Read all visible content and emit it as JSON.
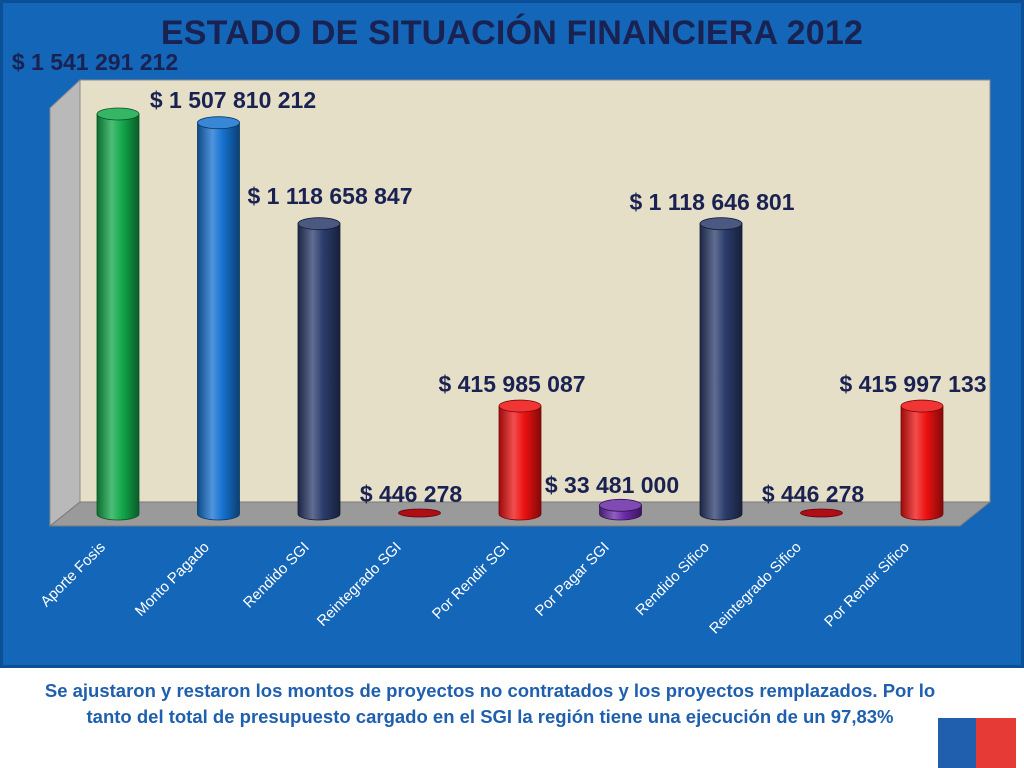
{
  "chart_data": {
    "type": "bar",
    "style": "3d-cylinder",
    "title": "ESTADO DE SITUACIÓN FINANCIERA 2012",
    "xlabel": "",
    "ylabel": "",
    "ylim": [
      0,
      1600000000
    ],
    "grid": false,
    "legend": "none",
    "categories": [
      "Aporte Fosis",
      "Monto Pagado",
      "Rendido SGI",
      "Reintegrado SGI",
      "Por Rendir SGI",
      "Por Pagar SGI",
      "Rendido Sifico",
      "Reintegrado Sifico",
      "Por Rendir Sifico"
    ],
    "values": [
      1541291212,
      1507810212,
      1118658847,
      446278,
      415985087,
      33481000,
      1118646801,
      446278,
      415997133
    ],
    "data_labels": [
      "$ 1 541 291 212",
      "$ 1 507 810 212",
      "$ 1 118 658 847",
      "$ 446 278",
      "$ 415 985 087",
      "$ 33 481 000",
      "$ 1 118 646 801",
      "$ 446 278",
      "$ 415 997 133"
    ],
    "colors": [
      "#12a84a",
      "#1572d0",
      "#2b3c6c",
      "#c40f18",
      "#ee1111",
      "#6a2aa8",
      "#2b3c6c",
      "#c40f18",
      "#ee1111"
    ],
    "plot_colors": {
      "back_wall": "#e6dfc8",
      "side_wall": "#b9b9b9",
      "floor": "#9a9a9a"
    }
  },
  "footer": {
    "note": "Se ajustaron y restaron los montos de proyectos no contratados y los proyectos remplazados. Por lo tanto del total de presupuesto cargado en el SGI la región tiene una ejecución de un 97,83%"
  },
  "colors": {
    "slide_background": "#1466b8",
    "title_text": "#1a2252",
    "footer_text": "#1f5fae",
    "flag_blue": "#1f5fae",
    "flag_red": "#e63a37"
  }
}
